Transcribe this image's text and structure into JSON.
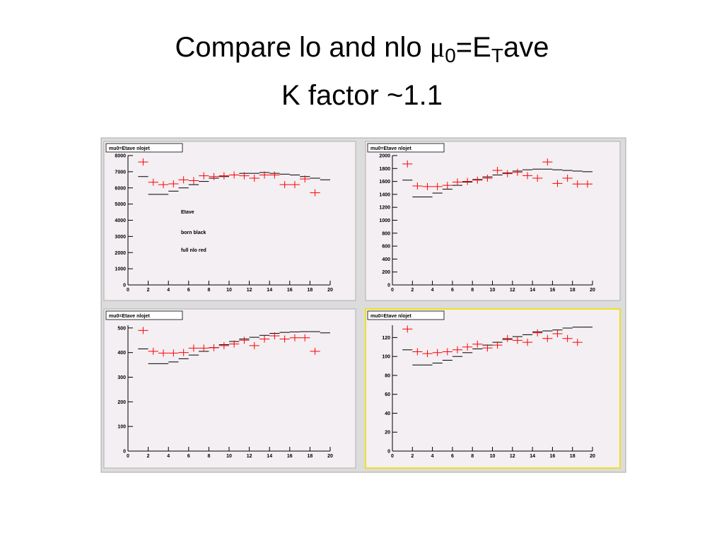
{
  "slide": {
    "title_parts": [
      "Compare lo and nlo ",
      "μ",
      "0",
      "=E",
      "T",
      "ave"
    ],
    "subtitle": "K factor ~1.1"
  },
  "chart_data": [
    {
      "type": "histogram",
      "title": "mu0=Etave nlojet",
      "annotations": [
        "Etave",
        "born black",
        "full nlo red"
      ],
      "bins": [
        1,
        2,
        3,
        4,
        5,
        6,
        7,
        8,
        9,
        10,
        11,
        12,
        13,
        14,
        15,
        16,
        17,
        18,
        19,
        20
      ],
      "series": [
        {
          "color": "#000000",
          "values": [
            6700,
            5600,
            5600,
            5800,
            6000,
            6200,
            6400,
            6600,
            6700,
            6800,
            6900,
            6900,
            6950,
            6900,
            6850,
            6800,
            6700,
            6600,
            6500
          ]
        },
        {
          "color": "#ff0000",
          "values": [
            7600,
            6350,
            6200,
            6250,
            6500,
            6450,
            6750,
            6700,
            6750,
            6800,
            6750,
            6600,
            6800,
            6800,
            6200,
            6200,
            6550,
            5700,
            null
          ]
        }
      ],
      "xlim": [
        0,
        20
      ],
      "xticks": [
        0,
        2,
        4,
        6,
        8,
        10,
        12,
        14,
        16,
        18,
        20
      ],
      "ylim": [
        0,
        8000
      ],
      "yticks": [
        0,
        1000,
        2000,
        3000,
        4000,
        5000,
        6000,
        7000,
        8000
      ]
    },
    {
      "type": "histogram",
      "title": "mu0=Etave nlojet",
      "bins": [
        1,
        2,
        3,
        4,
        5,
        6,
        7,
        8,
        9,
        10,
        11,
        12,
        13,
        14,
        15,
        16,
        17,
        18,
        19,
        20
      ],
      "series": [
        {
          "color": "#000000",
          "values": [
            1620,
            1360,
            1360,
            1420,
            1480,
            1540,
            1590,
            1630,
            1670,
            1700,
            1730,
            1760,
            1780,
            1790,
            1790,
            1780,
            1770,
            1760,
            1750
          ]
        },
        {
          "color": "#ff0000",
          "values": [
            1870,
            1530,
            1520,
            1520,
            1540,
            1590,
            1600,
            1620,
            1650,
            1770,
            1720,
            1740,
            1690,
            1650,
            1900,
            1570,
            1650,
            1560,
            1560
          ]
        }
      ],
      "xlim": [
        0,
        20
      ],
      "xticks": [
        0,
        2,
        4,
        6,
        8,
        10,
        12,
        14,
        16,
        18,
        20
      ],
      "ylim": [
        0,
        2000
      ],
      "yticks": [
        0,
        200,
        400,
        600,
        800,
        1000,
        1200,
        1400,
        1600,
        1800,
        2000
      ]
    },
    {
      "type": "histogram",
      "title": "mu0=Etave nlojet",
      "bins": [
        1,
        2,
        3,
        4,
        5,
        6,
        7,
        8,
        9,
        10,
        11,
        12,
        13,
        14,
        15,
        16,
        17,
        18,
        19,
        20
      ],
      "series": [
        {
          "color": "#000000",
          "values": [
            415,
            355,
            355,
            362,
            375,
            390,
            405,
            420,
            432,
            445,
            455,
            462,
            470,
            478,
            482,
            484,
            485,
            485,
            480
          ]
        },
        {
          "color": "#ff0000",
          "values": [
            490,
            405,
            398,
            398,
            400,
            418,
            418,
            420,
            428,
            435,
            450,
            428,
            455,
            468,
            455,
            460,
            460,
            405,
            null
          ]
        }
      ],
      "xlim": [
        0,
        20
      ],
      "xticks": [
        0,
        2,
        4,
        6,
        8,
        10,
        12,
        14,
        16,
        18,
        20
      ],
      "ylim": [
        0,
        511
      ],
      "yticks": [
        0,
        100,
        200,
        300,
        400,
        500
      ]
    },
    {
      "type": "histogram",
      "title": "mu0=Etave nlojet",
      "bins": [
        1,
        2,
        3,
        4,
        5,
        6,
        7,
        8,
        9,
        10,
        11,
        12,
        13,
        14,
        15,
        16,
        17,
        18,
        19,
        20
      ],
      "series": [
        {
          "color": "#000000",
          "values": [
            107,
            91,
            91,
            93,
            96,
            100,
            104,
            108,
            112,
            115,
            118,
            121,
            123,
            126,
            127,
            128,
            130,
            131,
            131
          ]
        },
        {
          "color": "#ff0000",
          "values": [
            129,
            105,
            103,
            104,
            105,
            107,
            110,
            113,
            109,
            112,
            119,
            117,
            115,
            125,
            119,
            124,
            119,
            115,
            null
          ]
        }
      ],
      "xlim": [
        0,
        20
      ],
      "xticks": [
        0,
        2,
        4,
        6,
        8,
        10,
        12,
        14,
        16,
        18,
        20
      ],
      "ylim": [
        0,
        133
      ],
      "yticks": [
        0,
        20,
        40,
        60,
        80,
        100,
        120
      ]
    }
  ]
}
